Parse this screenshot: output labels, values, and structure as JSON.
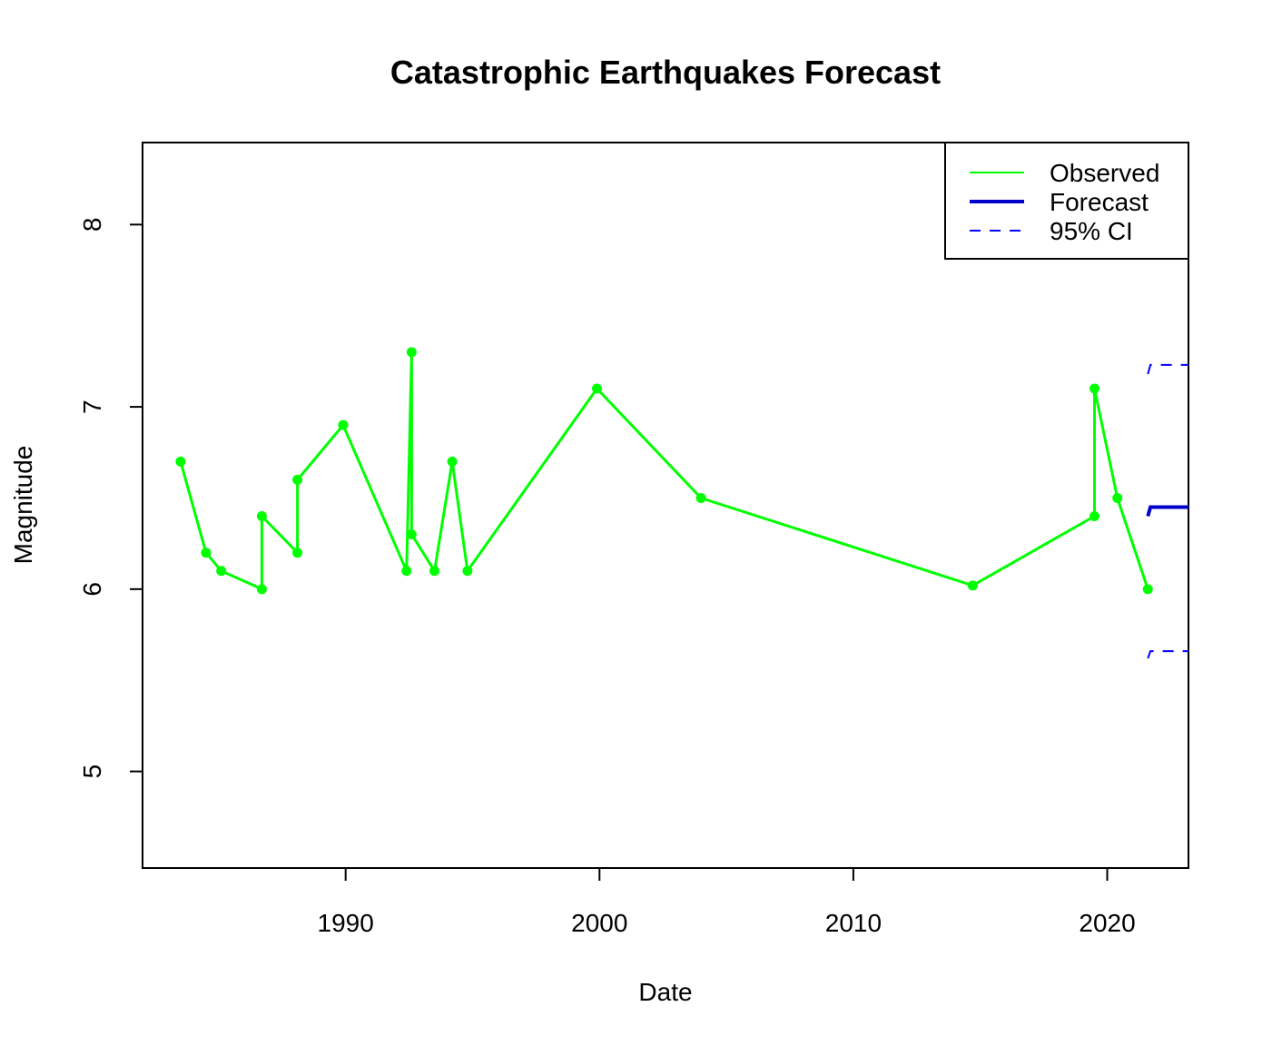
{
  "chart_data": {
    "type": "line",
    "title": "Catastrophic Earthquakes Forecast",
    "xlabel": "Date",
    "ylabel": "Magnitude",
    "xlim": [
      1982.0,
      2023.2
    ],
    "ylim": [
      4.47,
      8.45
    ],
    "x_ticks": [
      1990,
      2000,
      2010,
      2020
    ],
    "x_tick_labels": [
      "1990",
      "2000",
      "2010",
      "2020"
    ],
    "y_ticks": [
      5,
      6,
      7,
      8
    ],
    "y_tick_labels": [
      "5",
      "6",
      "7",
      "8"
    ],
    "grid": false,
    "legend_position": "top-right",
    "series": [
      {
        "name": "Observed",
        "style": "line-with-points",
        "color": "#00ff00",
        "x": [
          1983.5,
          1984.5,
          1985.1,
          1986.7,
          1986.7,
          1988.1,
          1988.1,
          1989.9,
          1992.4,
          1992.6,
          1992.6,
          1993.5,
          1994.2,
          1994.8,
          1999.9,
          2004.0,
          2014.7,
          2019.5,
          2019.5,
          2020.4,
          2021.6
        ],
        "y": [
          6.7,
          6.2,
          6.1,
          6.0,
          6.4,
          6.2,
          6.6,
          6.9,
          6.1,
          7.3,
          6.3,
          6.1,
          6.7,
          6.1,
          7.1,
          6.5,
          6.02,
          6.4,
          7.1,
          6.5,
          6.0
        ]
      },
      {
        "name": "Forecast",
        "style": "solid",
        "color": "#0000cd",
        "x": [
          2021.6,
          2021.7,
          2023.2
        ],
        "y": [
          6.4,
          6.45,
          6.45
        ]
      },
      {
        "name": "95% CI",
        "style": "dashed",
        "color": "#0000ff",
        "segments": [
          {
            "x": [
              2021.6,
              2021.7,
              2023.2
            ],
            "y": [
              7.18,
              7.23,
              7.23
            ]
          },
          {
            "x": [
              2021.6,
              2021.7,
              2023.2
            ],
            "y": [
              5.62,
              5.66,
              5.66
            ]
          }
        ]
      }
    ]
  }
}
